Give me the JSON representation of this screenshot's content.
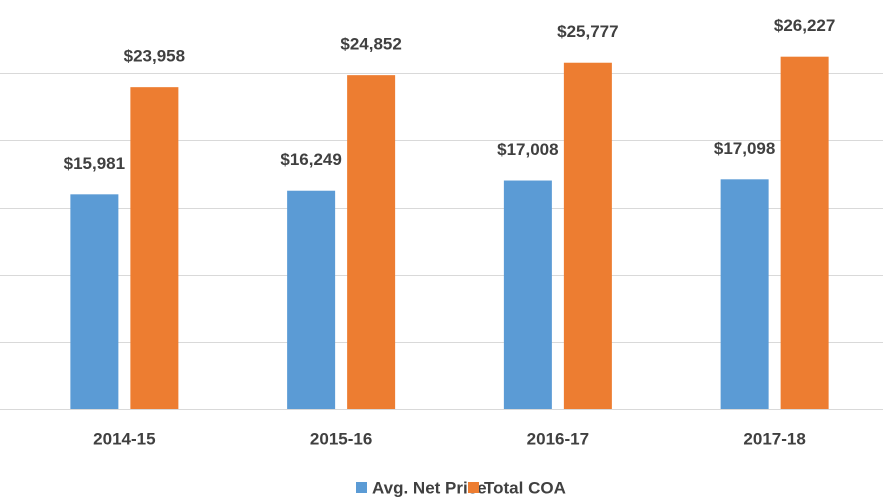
{
  "chart_data": {
    "type": "bar",
    "categories": [
      "2014-15",
      "2015-16",
      "2016-17",
      "2017-18"
    ],
    "series": [
      {
        "name": "Avg. Net Price",
        "color": "#5b9bd5",
        "values": [
          15981,
          16249,
          17008,
          17098
        ],
        "value_labels": [
          "$15,981",
          "$16,249",
          "$17,008",
          "$17,098"
        ]
      },
      {
        "name": "Total COA",
        "color": "#ed7d31",
        "values": [
          23958,
          24852,
          25777,
          26227
        ],
        "value_labels": [
          "$23,958",
          "$24,852",
          "$25,777",
          "$26,227"
        ]
      }
    ],
    "ylim": [
      0,
      30000
    ],
    "yticks": [
      0,
      5000,
      10000,
      15000,
      20000,
      25000
    ],
    "grid": true,
    "legend": "bottom"
  }
}
